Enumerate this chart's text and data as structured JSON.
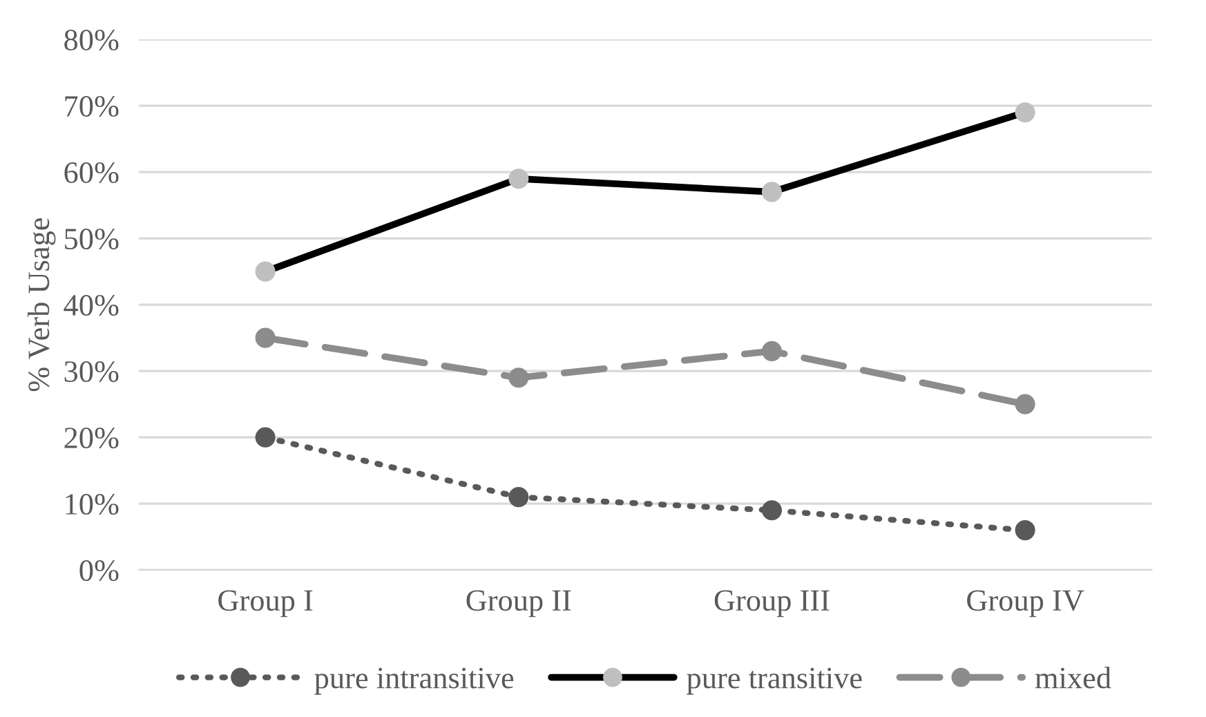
{
  "chart_data": {
    "type": "line",
    "ylabel": "% Verb Usage",
    "categories": [
      "Group I",
      "Group II",
      "Group III",
      "Group IV"
    ],
    "series": [
      {
        "name": "pure intransitive",
        "color": "#595959",
        "line_style": "dotted",
        "values": [
          20,
          11,
          9,
          6
        ]
      },
      {
        "name": "pure transitive",
        "color": "#000000",
        "colors": [
          "#bfbfbf",
          "#bfbfbf",
          "#bfbfbf",
          "#bfbfbf"
        ],
        "line_style": "solid",
        "values": [
          45,
          59,
          57,
          69
        ]
      },
      {
        "name": "mixed",
        "color": "#8c8c8c",
        "line_style": "dashed",
        "values": [
          35,
          29,
          33,
          25
        ]
      }
    ],
    "ylim": [
      0,
      80
    ],
    "yticks": [
      {
        "value": 0,
        "label": "0%"
      },
      {
        "value": 10,
        "label": "10%"
      },
      {
        "value": 20,
        "label": "20%"
      },
      {
        "value": 30,
        "label": "30%"
      },
      {
        "value": 40,
        "label": "40%"
      },
      {
        "value": 50,
        "label": "50%"
      },
      {
        "value": 60,
        "label": "60%"
      },
      {
        "value": 70,
        "label": "70%"
      },
      {
        "value": 80,
        "label": "80%"
      }
    ],
    "grid": "y",
    "legend": "bottom",
    "marker": "circle"
  }
}
